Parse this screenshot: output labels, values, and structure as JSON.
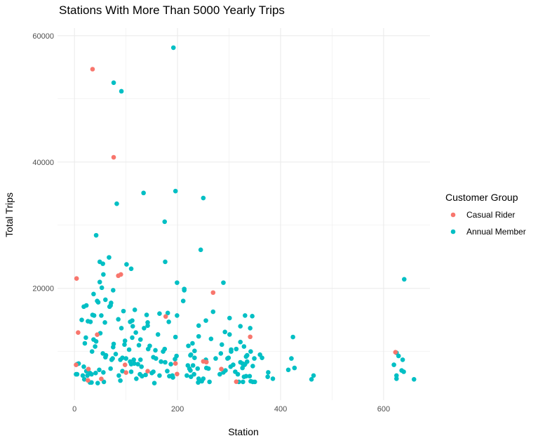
{
  "chart_data": {
    "type": "scatter",
    "title": "Stations With More Than 5000 Yearly Trips",
    "xlabel": "Station",
    "ylabel": "Total Trips",
    "xlim": [
      -33,
      690
    ],
    "ylim": [
      2300,
      61200
    ],
    "x_ticks": [
      0,
      200,
      400,
      600
    ],
    "x_tick_labels": [
      "0",
      "200",
      "400",
      "600"
    ],
    "y_ticks": [
      20000,
      40000,
      60000
    ],
    "y_tick_labels": [
      "20000",
      "40000",
      "60000"
    ],
    "grid": true,
    "legend": {
      "title": "Customer Group",
      "placement": "right"
    },
    "series": [
      {
        "name": "Annual Member",
        "color": "#00BFC4",
        "points": [
          [
            192,
            58100
          ],
          [
            76,
            52550
          ],
          [
            91,
            51200
          ],
          [
            134,
            35100
          ],
          [
            196,
            35400
          ],
          [
            250,
            34300
          ],
          [
            82,
            33400
          ],
          [
            175,
            30550
          ],
          [
            42,
            28400
          ],
          [
            245,
            26100
          ],
          [
            67,
            24900
          ],
          [
            49,
            24200
          ],
          [
            55,
            23900
          ],
          [
            101,
            23800
          ],
          [
            110,
            23100
          ],
          [
            56,
            22200
          ],
          [
            176,
            24200
          ],
          [
            49,
            21000
          ],
          [
            53,
            20100
          ],
          [
            199,
            20900
          ],
          [
            75,
            19700
          ],
          [
            37,
            19100
          ],
          [
            44,
            18000
          ],
          [
            46,
            17800
          ],
          [
            60,
            18200
          ],
          [
            71,
            17700
          ],
          [
            70,
            17300
          ],
          [
            68,
            17100
          ],
          [
            18,
            17100
          ],
          [
            23,
            17300
          ],
          [
            117,
            16600
          ],
          [
            95,
            16400
          ],
          [
            35,
            15800
          ],
          [
            38,
            15700
          ],
          [
            52,
            15700
          ],
          [
            140,
            15800
          ],
          [
            165,
            16000
          ],
          [
            181,
            16100
          ],
          [
            199,
            15700
          ],
          [
            14,
            15000
          ],
          [
            26,
            14800
          ],
          [
            31,
            14700
          ],
          [
            59,
            14600
          ],
          [
            85,
            15100
          ],
          [
            108,
            14700
          ],
          [
            112,
            14900
          ],
          [
            142,
            14600
          ],
          [
            142,
            14100
          ],
          [
            135,
            13700
          ],
          [
            113,
            14000
          ],
          [
            91,
            13700
          ],
          [
            183,
            14700
          ],
          [
            119,
            13000
          ],
          [
            50,
            12900
          ],
          [
            22,
            12200
          ],
          [
            37,
            11900
          ],
          [
            42,
            11600
          ],
          [
            20,
            11300
          ],
          [
            112,
            12200
          ],
          [
            128,
            11900
          ],
          [
            98,
            11700
          ],
          [
            97,
            11100
          ],
          [
            76,
            11200
          ],
          [
            75,
            10700
          ],
          [
            40,
            10800
          ],
          [
            125,
            11000
          ],
          [
            146,
            10900
          ],
          [
            143,
            10400
          ],
          [
            162,
            12700
          ],
          [
            106,
            10300
          ],
          [
            196,
            12300
          ],
          [
            34,
            10000
          ],
          [
            157,
            10200
          ],
          [
            175,
            10400
          ],
          [
            172,
            10000
          ],
          [
            55,
            9700
          ],
          [
            61,
            9400
          ],
          [
            60,
            9100
          ],
          [
            80,
            9600
          ],
          [
            74,
            8900
          ],
          [
            72,
            8700
          ],
          [
            89,
            8700
          ],
          [
            93,
            9000
          ],
          [
            100,
            8900
          ],
          [
            108,
            8400
          ],
          [
            115,
            8700
          ],
          [
            128,
            8700
          ],
          [
            153,
            9100
          ],
          [
            158,
            8900
          ],
          [
            168,
            8400
          ],
          [
            176,
            8300
          ],
          [
            195,
            8800
          ],
          [
            198,
            9300
          ],
          [
            5,
            8000
          ],
          [
            8,
            8100
          ],
          [
            18,
            7600
          ],
          [
            110,
            8000
          ],
          [
            116,
            8100
          ],
          [
            123,
            8000
          ],
          [
            130,
            7600
          ],
          [
            70,
            7300
          ],
          [
            187,
            8000
          ],
          [
            3,
            6400
          ],
          [
            5,
            6400
          ],
          [
            16,
            6200
          ],
          [
            23,
            6900
          ],
          [
            25,
            6200
          ],
          [
            30,
            6600
          ],
          [
            33,
            6400
          ],
          [
            41,
            6600
          ],
          [
            48,
            7100
          ],
          [
            56,
            6700
          ],
          [
            86,
            6200
          ],
          [
            89,
            5400
          ],
          [
            93,
            6900
          ],
          [
            110,
            6800
          ],
          [
            120,
            5700
          ],
          [
            127,
            6400
          ],
          [
            131,
            6100
          ],
          [
            138,
            6300
          ],
          [
            150,
            6600
          ],
          [
            153,
            6800
          ],
          [
            165,
            6200
          ],
          [
            180,
            6900
          ],
          [
            184,
            6100
          ],
          [
            190,
            6200
          ],
          [
            191,
            5900
          ],
          [
            19,
            5600
          ],
          [
            30,
            5100
          ],
          [
            33,
            5100
          ],
          [
            45,
            5000
          ],
          [
            57,
            5200
          ],
          [
            155,
            5000
          ],
          [
            213,
            19900
          ],
          [
            213,
            19700
          ],
          [
            289,
            20900
          ],
          [
            211,
            18000
          ],
          [
            269,
            16300
          ],
          [
            301,
            15300
          ],
          [
            331,
            15700
          ],
          [
            345,
            15600
          ],
          [
            255,
            14900
          ],
          [
            241,
            14100
          ],
          [
            322,
            14000
          ],
          [
            341,
            13700
          ],
          [
            292,
            13100
          ],
          [
            301,
            12700
          ],
          [
            241,
            12400
          ],
          [
            424,
            12300
          ],
          [
            265,
            12000
          ],
          [
            322,
            11500
          ],
          [
            329,
            10800
          ],
          [
            286,
            11100
          ],
          [
            221,
            10900
          ],
          [
            229,
            11300
          ],
          [
            304,
            10300
          ],
          [
            304,
            10000
          ],
          [
            314,
            10400
          ],
          [
            233,
            10100
          ],
          [
            342,
            10000
          ],
          [
            226,
            9500
          ],
          [
            225,
            9400
          ],
          [
            284,
            9700
          ],
          [
            335,
            9400
          ],
          [
            333,
            9200
          ],
          [
            360,
            9500
          ],
          [
            364,
            9000
          ],
          [
            233,
            9000
          ],
          [
            421,
            8900
          ],
          [
            255,
            8700
          ],
          [
            274,
            8900
          ],
          [
            297,
            8900
          ],
          [
            299,
            9000
          ],
          [
            349,
            8900
          ],
          [
            322,
            8300
          ],
          [
            326,
            8100
          ],
          [
            331,
            8000
          ],
          [
            335,
            8400
          ],
          [
            220,
            7800
          ],
          [
            230,
            7800
          ],
          [
            223,
            7300
          ],
          [
            225,
            7000
          ],
          [
            256,
            7400
          ],
          [
            260,
            7300
          ],
          [
            239,
            7300
          ],
          [
            293,
            7000
          ],
          [
            308,
            7900
          ],
          [
            303,
            7600
          ],
          [
            326,
            7400
          ],
          [
            330,
            7900
          ],
          [
            346,
            7700
          ],
          [
            415,
            7100
          ],
          [
            427,
            7400
          ],
          [
            218,
            6200
          ],
          [
            226,
            6000
          ],
          [
            232,
            6400
          ],
          [
            282,
            6400
          ],
          [
            289,
            6700
          ],
          [
            312,
            6800
          ],
          [
            317,
            6400
          ],
          [
            376,
            6700
          ],
          [
            375,
            6000
          ],
          [
            385,
            5700
          ],
          [
            241,
            5700
          ],
          [
            247,
            5300
          ],
          [
            250,
            5700
          ],
          [
            240,
            5100
          ],
          [
            262,
            5200
          ],
          [
            319,
            5200
          ],
          [
            327,
            5200
          ],
          [
            329,
            6000
          ],
          [
            333,
            6100
          ],
          [
            340,
            6100
          ],
          [
            342,
            5300
          ],
          [
            346,
            5200
          ],
          [
            350,
            5200
          ],
          [
            464,
            6200
          ],
          [
            460,
            5600
          ],
          [
            620,
            7900
          ],
          [
            625,
            9800
          ],
          [
            629,
            9300
          ],
          [
            637,
            8700
          ],
          [
            625,
            6200
          ],
          [
            635,
            7000
          ],
          [
            639,
            6800
          ],
          [
            625,
            5700
          ],
          [
            659,
            5600
          ],
          [
            640,
            21440
          ]
        ]
      },
      {
        "name": "Casual Rider",
        "color": "#F8766D",
        "points": [
          [
            35,
            54700
          ],
          [
            76,
            40750
          ],
          [
            4,
            21560
          ],
          [
            7,
            13000
          ],
          [
            85,
            22000
          ],
          [
            90,
            22200
          ],
          [
            44,
            12670
          ],
          [
            177,
            15550
          ],
          [
            3,
            7890
          ],
          [
            27,
            7220
          ],
          [
            98,
            7890
          ],
          [
            100,
            6670
          ],
          [
            142,
            6890
          ],
          [
            52,
            5670
          ],
          [
            26,
            5440
          ],
          [
            196,
            8110
          ],
          [
            199,
            6440
          ],
          [
            269,
            19330
          ],
          [
            341,
            12330
          ],
          [
            250,
            8440
          ],
          [
            256,
            8330
          ],
          [
            285,
            7220
          ],
          [
            314,
            5220
          ],
          [
            623,
            9890
          ]
        ]
      }
    ]
  }
}
